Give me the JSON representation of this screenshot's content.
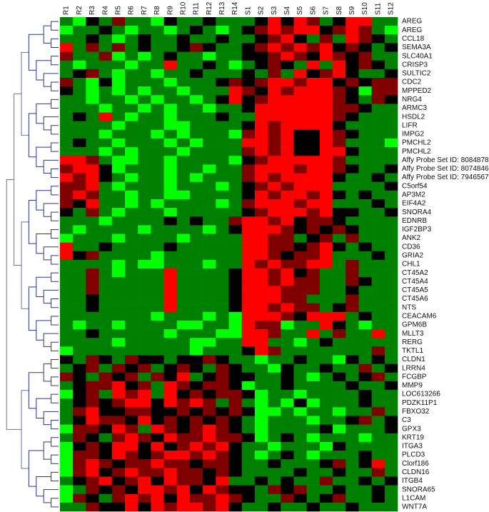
{
  "chart_data": {
    "type": "heatmap",
    "columns": [
      "R1",
      "R2",
      "R3",
      "R4",
      "R5",
      "R6",
      "R7",
      "R8",
      "R9",
      "R10",
      "R11",
      "R12",
      "R13",
      "R14",
      "S1",
      "S2",
      "S3",
      "S4",
      "S5",
      "S6",
      "S7",
      "S8",
      "S9",
      "S10",
      "S11",
      "S12"
    ],
    "rows": [
      "AREG",
      "AREG",
      "CCL18",
      "SEMA3A",
      "SLC40A1",
      "CRISP3",
      "SULTIC2",
      "CDC2",
      "MPPED2",
      "NRG4",
      "ARMC3",
      "HSDL2",
      "LIFR",
      "IMPG2",
      "PMCHL2",
      "PMCHL2",
      "Affy Probe Set ID: 8084878",
      "Affy Probe Set ID: 8074846",
      "Affy Probe Set ID: 7946567",
      "C5orf54",
      "AP3M2",
      "EIF4A2",
      "SNORA4",
      "EDNRB",
      "IGF2BP3",
      "ANK2",
      "CD36",
      "GRIA2",
      "CHL1",
      "CT45A2",
      "CT45A4",
      "CT45A5",
      "CT45A6",
      "NTS",
      "CEACAM6",
      "GPM6B",
      "MLLT3",
      "RERG",
      "TKTL1",
      "CLDN1",
      "LRRN4",
      "FCGBP",
      "MMP9",
      "LOC613266",
      "PDZK11P1",
      "FBXO32",
      "C3",
      "GPX3",
      "KRT19",
      "ITGA3",
      "PLCD3",
      "Clorf186",
      "CLDN16",
      "ITGB4",
      "SNORA65",
      "L1CAM",
      "WNT7A"
    ],
    "values": [
      [
        -1,
        -2,
        0,
        -1,
        1,
        -1,
        -1,
        -2,
        0,
        -1,
        -1,
        0,
        -1,
        -1,
        -1,
        0,
        2,
        0,
        2,
        1,
        -1,
        0,
        2,
        2,
        -1,
        -1
      ],
      [
        -2,
        -1,
        -1,
        0,
        -1,
        -2,
        -1,
        -1,
        -2,
        -1,
        0,
        -1,
        -2,
        -1,
        0,
        1,
        2,
        1,
        2,
        2,
        0,
        1,
        2,
        1,
        -1,
        -2
      ],
      [
        -1,
        -1,
        0,
        -1,
        -2,
        -1,
        0,
        -1,
        -1,
        0,
        -1,
        -1,
        0,
        -1,
        -1,
        0,
        1,
        2,
        0,
        -1,
        1,
        -1,
        2,
        1,
        0,
        -1
      ],
      [
        2,
        -1,
        1,
        -1,
        1,
        -1,
        0,
        -1,
        -1,
        0,
        1,
        0,
        -1,
        -1,
        0,
        1,
        2,
        1,
        2,
        1,
        2,
        0,
        1,
        0,
        -1,
        0
      ],
      [
        1,
        -1,
        -1,
        1,
        -2,
        -1,
        -2,
        -1,
        0,
        -1,
        -1,
        -2,
        -1,
        -1,
        0,
        0,
        1,
        2,
        1,
        0,
        2,
        1,
        0,
        1,
        -1,
        -1
      ],
      [
        -1,
        -2,
        -1,
        -1,
        -1,
        -2,
        -1,
        -1,
        2,
        -1,
        -1,
        0,
        -1,
        -2,
        -1,
        0,
        1,
        0,
        -1,
        2,
        -1,
        2,
        0,
        1,
        0,
        -1
      ],
      [
        -1,
        0,
        1,
        -1,
        -2,
        -1,
        -1,
        -2,
        -1,
        -1,
        0,
        -1,
        -1,
        -1,
        0,
        -1,
        1,
        -1,
        2,
        0,
        1,
        2,
        0,
        -1,
        -1,
        0
      ],
      [
        1,
        -1,
        -2,
        0,
        -2,
        -1,
        -1,
        -1,
        -2,
        -1,
        -1,
        -1,
        0,
        1,
        0,
        1,
        2,
        2,
        1,
        2,
        2,
        0,
        1,
        0,
        1,
        1
      ],
      [
        0,
        -1,
        -2,
        -1,
        -2,
        -1,
        -2,
        -1,
        -1,
        -2,
        -1,
        -1,
        -1,
        2,
        1,
        0,
        2,
        1,
        2,
        2,
        2,
        1,
        0,
        -2,
        1,
        1
      ],
      [
        -1,
        -1,
        -2,
        -1,
        -1,
        -2,
        -1,
        -2,
        -1,
        -1,
        -2,
        -1,
        0,
        2,
        0,
        1,
        2,
        2,
        2,
        2,
        2,
        1,
        0,
        -1,
        1,
        0
      ],
      [
        -1,
        -1,
        -1,
        -2,
        -1,
        -1,
        -2,
        -1,
        -2,
        -1,
        -1,
        -2,
        -1,
        -1,
        0,
        2,
        2,
        2,
        2,
        2,
        2,
        1,
        1,
        0,
        -1,
        -1
      ],
      [
        -1,
        0,
        -1,
        2,
        -1,
        -2,
        -1,
        -1,
        -2,
        -1,
        -1,
        -1,
        0,
        -1,
        -1,
        2,
        2,
        2,
        2,
        2,
        2,
        1,
        0,
        -1,
        -1,
        -1
      ],
      [
        -1,
        -1,
        -1,
        -1,
        -2,
        -1,
        -1,
        -1,
        -2,
        -2,
        -1,
        -1,
        -1,
        -1,
        0,
        2,
        1,
        2,
        2,
        2,
        2,
        0,
        -1,
        -1,
        -1,
        -1
      ],
      [
        -1,
        -1,
        -1,
        -2,
        -1,
        -1,
        -1,
        -2,
        -1,
        -2,
        -1,
        -1,
        -1,
        -2,
        1,
        2,
        1,
        2,
        0,
        0,
        2,
        1,
        0,
        -1,
        -1,
        -1
      ],
      [
        -1,
        0,
        -1,
        -1,
        -2,
        -1,
        -1,
        -1,
        -2,
        -1,
        -2,
        -1,
        -1,
        -1,
        2,
        2,
        1,
        2,
        0,
        0,
        2,
        1,
        -1,
        -1,
        -1,
        -2
      ],
      [
        -1,
        -1,
        -1,
        -2,
        -1,
        -2,
        -1,
        -1,
        -1,
        -2,
        -1,
        -1,
        -1,
        -1,
        1,
        2,
        1,
        2,
        0,
        0,
        2,
        2,
        0,
        -1,
        -1,
        -1
      ],
      [
        2,
        2,
        1,
        -1,
        -2,
        -2,
        -1,
        -1,
        -2,
        -1,
        -1,
        -1,
        -1,
        -2,
        0,
        1,
        2,
        2,
        2,
        2,
        2,
        1,
        -1,
        -1,
        -1,
        -1
      ],
      [
        1,
        2,
        2,
        0,
        -2,
        -1,
        -1,
        -1,
        -2,
        -1,
        -1,
        -2,
        -1,
        -1,
        1,
        2,
        2,
        2,
        1,
        2,
        2,
        1,
        0,
        -1,
        -1,
        0
      ],
      [
        2,
        1,
        2,
        0,
        -1,
        -2,
        -1,
        -1,
        -2,
        -1,
        -2,
        -1,
        -1,
        -1,
        1,
        2,
        1,
        2,
        2,
        2,
        2,
        0,
        -1,
        -1,
        0,
        -1
      ],
      [
        1,
        1,
        2,
        -1,
        -2,
        -1,
        -1,
        -1,
        -2,
        -1,
        -1,
        -1,
        -2,
        -1,
        0,
        1,
        2,
        1,
        2,
        2,
        2,
        -1,
        -1,
        -1,
        -1,
        0
      ],
      [
        1,
        2,
        1,
        -1,
        -1,
        -2,
        -1,
        -1,
        -2,
        -2,
        -1,
        -1,
        -1,
        -1,
        0,
        2,
        1,
        2,
        2,
        1,
        2,
        0,
        -1,
        0,
        -1,
        -1
      ],
      [
        1,
        0,
        2,
        -1,
        -1,
        -2,
        -1,
        -2,
        -1,
        -1,
        -1,
        -1,
        -2,
        -1,
        1,
        2,
        2,
        2,
        1,
        2,
        2,
        -1,
        -1,
        -1,
        0,
        -1
      ],
      [
        0,
        -1,
        1,
        -1,
        -2,
        -1,
        -1,
        -1,
        -2,
        -1,
        -1,
        -1,
        -1,
        -1,
        0,
        1,
        2,
        2,
        2,
        1,
        2,
        0,
        0,
        -1,
        -1,
        0
      ],
      [
        -1,
        -1,
        -1,
        -2,
        -1,
        -1,
        -1,
        -1,
        0,
        -1,
        0,
        -1,
        -1,
        1,
        2,
        2,
        1,
        2,
        0,
        1,
        1,
        0,
        -1,
        -1,
        -1,
        -1
      ],
      [
        -1,
        -2,
        -1,
        -1,
        -1,
        -1,
        -2,
        -1,
        -1,
        -1,
        -1,
        -2,
        -1,
        0,
        2,
        2,
        2,
        1,
        0,
        1,
        0,
        1,
        0,
        -1,
        -1,
        -1
      ],
      [
        -2,
        -1,
        -1,
        -1,
        -2,
        -1,
        -1,
        -1,
        -1,
        -2,
        -1,
        -1,
        -1,
        -1,
        2,
        2,
        1,
        1,
        -1,
        0,
        1,
        -1,
        1,
        -1,
        -1,
        -1
      ],
      [
        2,
        -1,
        -1,
        0,
        -1,
        -1,
        -1,
        -1,
        0,
        -1,
        -1,
        -1,
        -1,
        -1,
        2,
        2,
        1,
        1,
        0,
        1,
        2,
        0,
        -1,
        0,
        -1,
        -1
      ],
      [
        2,
        0,
        1,
        -1,
        -1,
        -1,
        -1,
        -2,
        -1,
        -1,
        -1,
        -1,
        -1,
        -1,
        2,
        2,
        1,
        0,
        1,
        1,
        2,
        -1,
        -1,
        -1,
        0,
        -1
      ],
      [
        -1,
        -1,
        -1,
        -1,
        -2,
        -1,
        -2,
        -2,
        -1,
        -1,
        -1,
        -2,
        -1,
        -1,
        2,
        1,
        2,
        1,
        1,
        2,
        2,
        -1,
        1,
        -1,
        -1,
        -1
      ],
      [
        -1,
        -1,
        1,
        -1,
        -2,
        -1,
        -1,
        -1,
        2,
        -1,
        -1,
        -1,
        -1,
        0,
        2,
        2,
        1,
        2,
        0,
        1,
        -1,
        -1,
        1,
        -1,
        -1,
        -1
      ],
      [
        -1,
        -1,
        1,
        -1,
        -1,
        -1,
        -1,
        -1,
        2,
        -1,
        -1,
        -1,
        -1,
        0,
        2,
        2,
        1,
        2,
        1,
        1,
        -1,
        -1,
        1,
        0,
        -1,
        -1
      ],
      [
        -1,
        -1,
        1,
        -1,
        -1,
        -1,
        -1,
        -1,
        2,
        -1,
        -1,
        -1,
        -1,
        0,
        2,
        2,
        2,
        1,
        1,
        1,
        -1,
        -1,
        0,
        -1,
        -1,
        -1
      ],
      [
        -1,
        -1,
        0,
        -1,
        -1,
        -1,
        -1,
        -1,
        2,
        -1,
        -1,
        -1,
        -1,
        0,
        2,
        2,
        2,
        1,
        1,
        -1,
        -1,
        -1,
        1,
        -1,
        -1,
        -1
      ],
      [
        -1,
        -1,
        0,
        -1,
        -1,
        -1,
        -1,
        -1,
        2,
        -1,
        -1,
        -1,
        -1,
        0,
        2,
        2,
        1,
        2,
        1,
        1,
        -1,
        0,
        1,
        -1,
        -1,
        -1
      ],
      [
        -1,
        -1,
        -1,
        -1,
        -1,
        -1,
        -1,
        -2,
        -1,
        -1,
        -1,
        -2,
        -1,
        -2,
        2,
        2,
        2,
        1,
        0,
        2,
        2,
        2,
        -1,
        0,
        -1,
        -1
      ],
      [
        -1,
        -2,
        -1,
        -1,
        -2,
        -1,
        -1,
        -1,
        -1,
        -2,
        -2,
        -1,
        -1,
        -2,
        2,
        1,
        1,
        -2,
        -1,
        -1,
        2,
        0,
        -1,
        -2,
        -1,
        -1
      ],
      [
        -1,
        -1,
        0,
        -1,
        -1,
        -1,
        -1,
        -1,
        -2,
        -1,
        -1,
        -1,
        -2,
        -2,
        2,
        2,
        1,
        -1,
        -1,
        2,
        -1,
        1,
        -1,
        -1,
        2,
        -1
      ],
      [
        -1,
        -1,
        -1,
        -1,
        -2,
        -1,
        -1,
        -1,
        -1,
        -1,
        -2,
        -2,
        -1,
        -1,
        2,
        2,
        -1,
        -1,
        -2,
        -1,
        0,
        -1,
        -1,
        -1,
        -1,
        -1
      ],
      [
        -2,
        -1,
        -1,
        -1,
        -1,
        -1,
        -1,
        -1,
        -1,
        -1,
        -2,
        -1,
        -1,
        -1,
        0,
        2,
        1,
        -1,
        -1,
        -1,
        -1,
        -1,
        -1,
        -1,
        1,
        -1
      ],
      [
        0,
        -1,
        1,
        0,
        -1,
        1,
        0,
        0,
        -1,
        0,
        0,
        1,
        0,
        -1,
        -1,
        -2,
        -1,
        -1,
        0,
        -1,
        -1,
        -2,
        0,
        -1,
        0,
        -1
      ],
      [
        -1,
        0,
        1,
        -1,
        1,
        0,
        1,
        -1,
        0,
        1,
        0,
        -1,
        1,
        0,
        -1,
        -1,
        -2,
        0,
        -1,
        -1,
        0,
        -1,
        -1,
        1,
        -1,
        0
      ],
      [
        1,
        0,
        -1,
        1,
        0,
        1,
        -1,
        1,
        0,
        2,
        -1,
        0,
        1,
        0,
        0,
        -1,
        -1,
        0,
        -1,
        -2,
        -1,
        0,
        -1,
        0,
        1,
        -1
      ],
      [
        -1,
        0,
        1,
        1,
        2,
        0,
        1,
        -1,
        2,
        1,
        0,
        1,
        1,
        0,
        -2,
        -1,
        -1,
        0,
        -1,
        -1,
        -1,
        -1,
        0,
        -1,
        -1,
        0
      ],
      [
        -2,
        0,
        1,
        -1,
        2,
        1,
        2,
        -1,
        2,
        0,
        1,
        0,
        1,
        1,
        0,
        -2,
        -1,
        -1,
        -2,
        -1,
        -1,
        -1,
        -1,
        0,
        -1,
        -1
      ],
      [
        -1,
        0,
        1,
        0,
        1,
        2,
        2,
        0,
        2,
        1,
        2,
        1,
        -1,
        1,
        -1,
        -2,
        -1,
        -2,
        0,
        -2,
        -1,
        -1,
        -1,
        0,
        -1,
        -1
      ],
      [
        -1,
        1,
        2,
        0,
        0,
        1,
        1,
        0,
        0,
        1,
        0,
        1,
        0,
        1,
        0,
        -2,
        -2,
        -1,
        -2,
        -1,
        -1,
        -2,
        -1,
        -1,
        1,
        -1
      ],
      [
        -1,
        0,
        2,
        1,
        1,
        0,
        2,
        0,
        1,
        0,
        1,
        0,
        1,
        0,
        -1,
        -2,
        -1,
        -1,
        -1,
        -2,
        -1,
        -1,
        0,
        1,
        -1,
        0
      ],
      [
        -2,
        1,
        1,
        0,
        2,
        1,
        -1,
        2,
        1,
        0,
        1,
        2,
        1,
        0,
        -1,
        -2,
        -1,
        -1,
        -1,
        -1,
        0,
        -2,
        -1,
        -1,
        -1,
        0
      ],
      [
        -1,
        1,
        0,
        -1,
        1,
        2,
        1,
        0,
        2,
        1,
        1,
        2,
        1,
        1,
        0,
        -2,
        -1,
        0,
        -1,
        -2,
        -1,
        -1,
        -1,
        -2,
        -1,
        -1
      ],
      [
        -2,
        0,
        1,
        0,
        2,
        2,
        0,
        2,
        0,
        1,
        2,
        1,
        2,
        0,
        -1,
        -1,
        -2,
        -1,
        -1,
        -1,
        -2,
        0,
        -1,
        -1,
        -1,
        -1
      ],
      [
        -2,
        1,
        1,
        0,
        2,
        1,
        0,
        1,
        2,
        2,
        1,
        2,
        1,
        0,
        -1,
        -2,
        -1,
        0,
        -1,
        -2,
        -1,
        -1,
        -1,
        0,
        -1,
        -1
      ],
      [
        -2,
        1,
        2,
        1,
        0,
        1,
        1,
        2,
        1,
        1,
        0,
        1,
        1,
        0,
        -1,
        -1,
        0,
        -1,
        -1,
        -1,
        0,
        1,
        -1,
        0,
        2,
        -1
      ],
      [
        -2,
        1,
        2,
        0,
        1,
        2,
        1,
        1,
        2,
        1,
        1,
        0,
        1,
        0,
        -1,
        -1,
        -1,
        -1,
        0,
        -1,
        -1,
        0,
        -1,
        -1,
        1,
        -1
      ],
      [
        -1,
        0,
        1,
        2,
        0,
        1,
        2,
        0,
        2,
        1,
        1,
        0,
        2,
        -1,
        -1,
        0,
        -1,
        0,
        -1,
        -1,
        1,
        -1,
        -1,
        0,
        -1,
        0
      ],
      [
        -2,
        -1,
        1,
        0,
        1,
        0,
        2,
        2,
        1,
        2,
        0,
        2,
        1,
        0,
        0,
        -1,
        1,
        0,
        1,
        -1,
        -1,
        0,
        -1,
        -1,
        0,
        -1
      ],
      [
        -2,
        1,
        0,
        -1,
        1,
        2,
        1,
        2,
        0,
        2,
        1,
        1,
        2,
        1,
        0,
        -1,
        -1,
        1,
        0,
        -1,
        0,
        1,
        -1,
        -1,
        0,
        -1
      ],
      [
        -1,
        -1,
        1,
        0,
        0,
        2,
        0,
        2,
        1,
        2,
        2,
        1,
        2,
        0,
        -1,
        -1,
        0,
        -1,
        -1,
        0,
        -1,
        -1,
        0,
        -1,
        -1,
        -1
      ]
    ]
  }
}
